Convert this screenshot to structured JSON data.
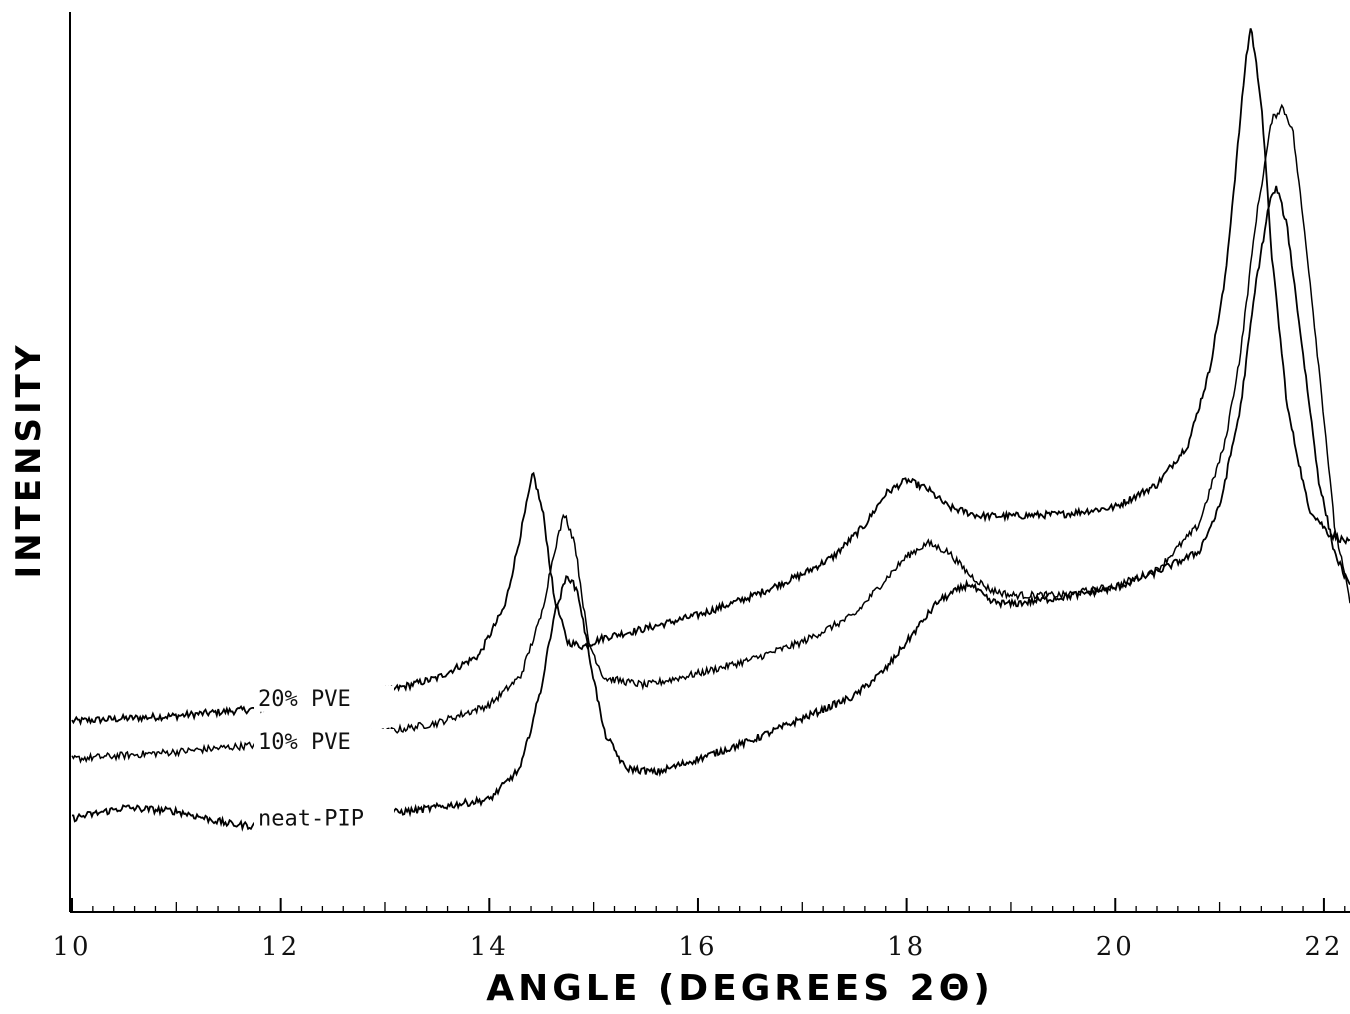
{
  "chart_data": {
    "type": "line",
    "title": "",
    "xlabel": "ANGLE (DEGREES 2Θ)",
    "ylabel": "INTENSITY",
    "xlim": [
      10,
      22.25
    ],
    "ylim": [
      0,
      1
    ],
    "x_ticks": [
      "10",
      "12",
      "14",
      "16",
      "18",
      "20",
      "22"
    ],
    "grid": false,
    "legend": "inline labels at left",
    "series": [
      {
        "name": "20% PVE",
        "color": "#000000",
        "points": [
          [
            10,
            0.212
          ],
          [
            11,
            0.218
          ],
          [
            12,
            0.228
          ],
          [
            12.5,
            0.235
          ],
          [
            13,
            0.245
          ],
          [
            13.5,
            0.26
          ],
          [
            13.9,
            0.285
          ],
          [
            14.15,
            0.34
          ],
          [
            14.3,
            0.42
          ],
          [
            14.42,
            0.488
          ],
          [
            14.52,
            0.44
          ],
          [
            14.62,
            0.35
          ],
          [
            14.75,
            0.3
          ],
          [
            14.9,
            0.295
          ],
          [
            15.1,
            0.305
          ],
          [
            15.5,
            0.315
          ],
          [
            16,
            0.33
          ],
          [
            16.5,
            0.35
          ],
          [
            17,
            0.375
          ],
          [
            17.3,
            0.395
          ],
          [
            17.6,
            0.43
          ],
          [
            17.8,
            0.465
          ],
          [
            18,
            0.48
          ],
          [
            18.2,
            0.47
          ],
          [
            18.4,
            0.45
          ],
          [
            18.7,
            0.44
          ],
          [
            19,
            0.44
          ],
          [
            19.5,
            0.442
          ],
          [
            20,
            0.45
          ],
          [
            20.4,
            0.475
          ],
          [
            20.7,
            0.52
          ],
          [
            20.9,
            0.6
          ],
          [
            21.05,
            0.7
          ],
          [
            21.15,
            0.82
          ],
          [
            21.25,
            0.945
          ],
          [
            21.3,
            0.985
          ],
          [
            21.4,
            0.9
          ],
          [
            21.5,
            0.73
          ],
          [
            21.65,
            0.56
          ],
          [
            21.85,
            0.45
          ],
          [
            22.05,
            0.42
          ],
          [
            22.25,
            0.41
          ]
        ]
      },
      {
        "name": "10% PVE",
        "color": "#000000",
        "points": [
          [
            10,
            0.17
          ],
          [
            11,
            0.178
          ],
          [
            12,
            0.188
          ],
          [
            13,
            0.2
          ],
          [
            13.5,
            0.21
          ],
          [
            14,
            0.23
          ],
          [
            14.3,
            0.262
          ],
          [
            14.5,
            0.33
          ],
          [
            14.62,
            0.4
          ],
          [
            14.72,
            0.443
          ],
          [
            14.82,
            0.41
          ],
          [
            14.95,
            0.3
          ],
          [
            15.1,
            0.26
          ],
          [
            15.5,
            0.252
          ],
          [
            16,
            0.265
          ],
          [
            16.5,
            0.28
          ],
          [
            17,
            0.3
          ],
          [
            17.5,
            0.33
          ],
          [
            17.8,
            0.37
          ],
          [
            18,
            0.395
          ],
          [
            18.2,
            0.41
          ],
          [
            18.4,
            0.4
          ],
          [
            18.6,
            0.375
          ],
          [
            18.8,
            0.358
          ],
          [
            19,
            0.352
          ],
          [
            19.5,
            0.352
          ],
          [
            20,
            0.362
          ],
          [
            20.4,
            0.38
          ],
          [
            20.8,
            0.43
          ],
          [
            21.05,
            0.52
          ],
          [
            21.2,
            0.62
          ],
          [
            21.35,
            0.77
          ],
          [
            21.5,
            0.88
          ],
          [
            21.6,
            0.895
          ],
          [
            21.7,
            0.87
          ],
          [
            21.85,
            0.72
          ],
          [
            22,
            0.55
          ],
          [
            22.1,
            0.43
          ],
          [
            22.25,
            0.345
          ]
        ]
      },
      {
        "name": "neat-PIP",
        "color": "#000000",
        "points": [
          [
            10,
            0.104
          ],
          [
            10.5,
            0.116
          ],
          [
            11,
            0.112
          ],
          [
            11.5,
            0.098
          ],
          [
            11.8,
            0.095
          ],
          [
            12.5,
            0.104
          ],
          [
            13.3,
            0.113
          ],
          [
            14,
            0.125
          ],
          [
            14.3,
            0.16
          ],
          [
            14.5,
            0.25
          ],
          [
            14.62,
            0.33
          ],
          [
            14.75,
            0.375
          ],
          [
            14.85,
            0.355
          ],
          [
            14.95,
            0.29
          ],
          [
            15.1,
            0.2
          ],
          [
            15.3,
            0.16
          ],
          [
            15.6,
            0.155
          ],
          [
            16,
            0.17
          ],
          [
            16.5,
            0.19
          ],
          [
            17,
            0.215
          ],
          [
            17.5,
            0.24
          ],
          [
            17.8,
            0.27
          ],
          [
            18,
            0.3
          ],
          [
            18.3,
            0.345
          ],
          [
            18.6,
            0.365
          ],
          [
            18.8,
            0.345
          ],
          [
            19,
            0.342
          ],
          [
            19.5,
            0.35
          ],
          [
            20,
            0.36
          ],
          [
            20.4,
            0.378
          ],
          [
            20.8,
            0.4
          ],
          [
            21,
            0.45
          ],
          [
            21.2,
            0.56
          ],
          [
            21.35,
            0.7
          ],
          [
            21.48,
            0.79
          ],
          [
            21.55,
            0.805
          ],
          [
            21.65,
            0.76
          ],
          [
            21.8,
            0.62
          ],
          [
            21.95,
            0.48
          ],
          [
            22.1,
            0.4
          ],
          [
            22.25,
            0.36
          ]
        ]
      }
    ]
  }
}
